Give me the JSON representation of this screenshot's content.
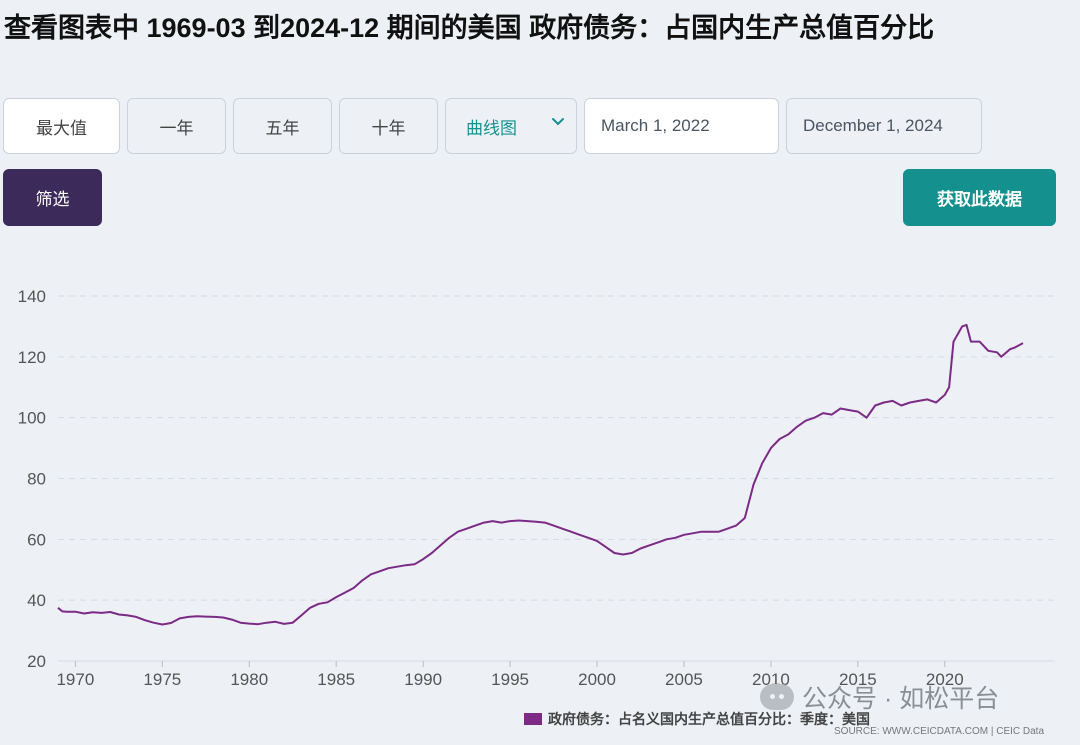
{
  "title": "查看图表中 1969-03 到2024-12 期间的美国 政府债务：占国内生产总值百分比",
  "toolbar": {
    "range_buttons": [
      "最大值",
      "一年",
      "五年",
      "十年"
    ],
    "chart_type_label": "曲线图",
    "start_date": "March 1, 2022",
    "end_date": "December 1, 2024",
    "filter_label": "筛选",
    "get_data_label": "获取此数据"
  },
  "colors": {
    "accent_teal": "#14908f",
    "filter_purple": "#3b2a5a",
    "series_purple": "#7b2a86",
    "grid": "#d6dce3"
  },
  "watermark": "公众号 · 如松平台",
  "source_note": "SOURCE: WWW.CEICDATA.COM | CEIC Data",
  "chart_data": {
    "type": "line",
    "title": "",
    "xlabel": "",
    "ylabel": "",
    "ylim": [
      20,
      140
    ],
    "xlim": [
      1969,
      2024.9
    ],
    "y_ticks": [
      20,
      40,
      60,
      80,
      100,
      120,
      140
    ],
    "x_ticks": [
      1970,
      1975,
      1980,
      1985,
      1990,
      1995,
      2000,
      2005,
      2010,
      2015,
      2020
    ],
    "grid": "horizontal dashed",
    "legend_position": "bottom",
    "series": [
      {
        "name": "政府债务：占名义国内生产总值百分比：季度：美国",
        "color": "#7b2a86",
        "x": [
          1969.0,
          1969.25,
          1969.5,
          1970.0,
          1970.5,
          1971.0,
          1971.5,
          1972.0,
          1972.5,
          1973.0,
          1973.5,
          1974.0,
          1974.5,
          1975.0,
          1975.5,
          1976.0,
          1976.5,
          1977.0,
          1977.5,
          1978.0,
          1978.5,
          1979.0,
          1979.5,
          1980.0,
          1980.5,
          1981.0,
          1981.5,
          1982.0,
          1982.5,
          1983.0,
          1983.5,
          1984.0,
          1984.5,
          1985.0,
          1985.5,
          1986.0,
          1986.5,
          1987.0,
          1987.5,
          1988.0,
          1988.5,
          1989.0,
          1989.5,
          1990.0,
          1990.5,
          1991.0,
          1991.5,
          1992.0,
          1992.5,
          1993.0,
          1993.5,
          1994.0,
          1994.5,
          1995.0,
          1995.5,
          1996.0,
          1996.5,
          1997.0,
          1997.5,
          1998.0,
          1998.5,
          1999.0,
          1999.5,
          2000.0,
          2000.5,
          2001.0,
          2001.5,
          2002.0,
          2002.5,
          2003.0,
          2003.5,
          2004.0,
          2004.5,
          2005.0,
          2005.5,
          2006.0,
          2006.5,
          2007.0,
          2007.5,
          2008.0,
          2008.5,
          2009.0,
          2009.5,
          2010.0,
          2010.5,
          2011.0,
          2011.5,
          2012.0,
          2012.5,
          2013.0,
          2013.5,
          2014.0,
          2014.5,
          2015.0,
          2015.5,
          2016.0,
          2016.5,
          2017.0,
          2017.5,
          2018.0,
          2018.5,
          2019.0,
          2019.5,
          2020.0,
          2020.25,
          2020.5,
          2021.0,
          2021.25,
          2021.5,
          2022.0,
          2022.5,
          2023.0,
          2023.25,
          2023.75,
          2024.0,
          2024.5
        ],
        "values": [
          37.5,
          36.3,
          36.2,
          36.2,
          35.6,
          36.0,
          35.8,
          36.1,
          35.3,
          35.0,
          34.5,
          33.4,
          32.6,
          32.0,
          32.5,
          34.0,
          34.5,
          34.7,
          34.6,
          34.5,
          34.3,
          33.6,
          32.6,
          32.3,
          32.1,
          32.6,
          32.9,
          32.2,
          32.6,
          35.0,
          37.5,
          38.8,
          39.3,
          41.0,
          42.5,
          44.0,
          46.5,
          48.5,
          49.5,
          50.5,
          51.0,
          51.5,
          51.8,
          53.5,
          55.5,
          58.0,
          60.5,
          62.5,
          63.5,
          64.5,
          65.5,
          66.0,
          65.5,
          66.0,
          66.2,
          66.0,
          65.8,
          65.5,
          64.5,
          63.5,
          62.5,
          61.5,
          60.5,
          59.5,
          57.5,
          55.5,
          55.0,
          55.5,
          57.0,
          58.0,
          59.0,
          60.0,
          60.5,
          61.5,
          62.0,
          62.5,
          62.5,
          62.5,
          63.5,
          64.5,
          67.0,
          78.0,
          85.0,
          90.0,
          93.0,
          94.5,
          97.0,
          99.0,
          100.0,
          101.5,
          101.0,
          103.0,
          102.5,
          102.0,
          100.0,
          104.0,
          105.0,
          105.5,
          104.0,
          105.0,
          105.5,
          106.0,
          105.0,
          107.5,
          110.0,
          125.0,
          130.0,
          130.5,
          125.0,
          125.0,
          122.0,
          121.5,
          120.0,
          122.5,
          123.0,
          124.5
        ]
      }
    ]
  }
}
